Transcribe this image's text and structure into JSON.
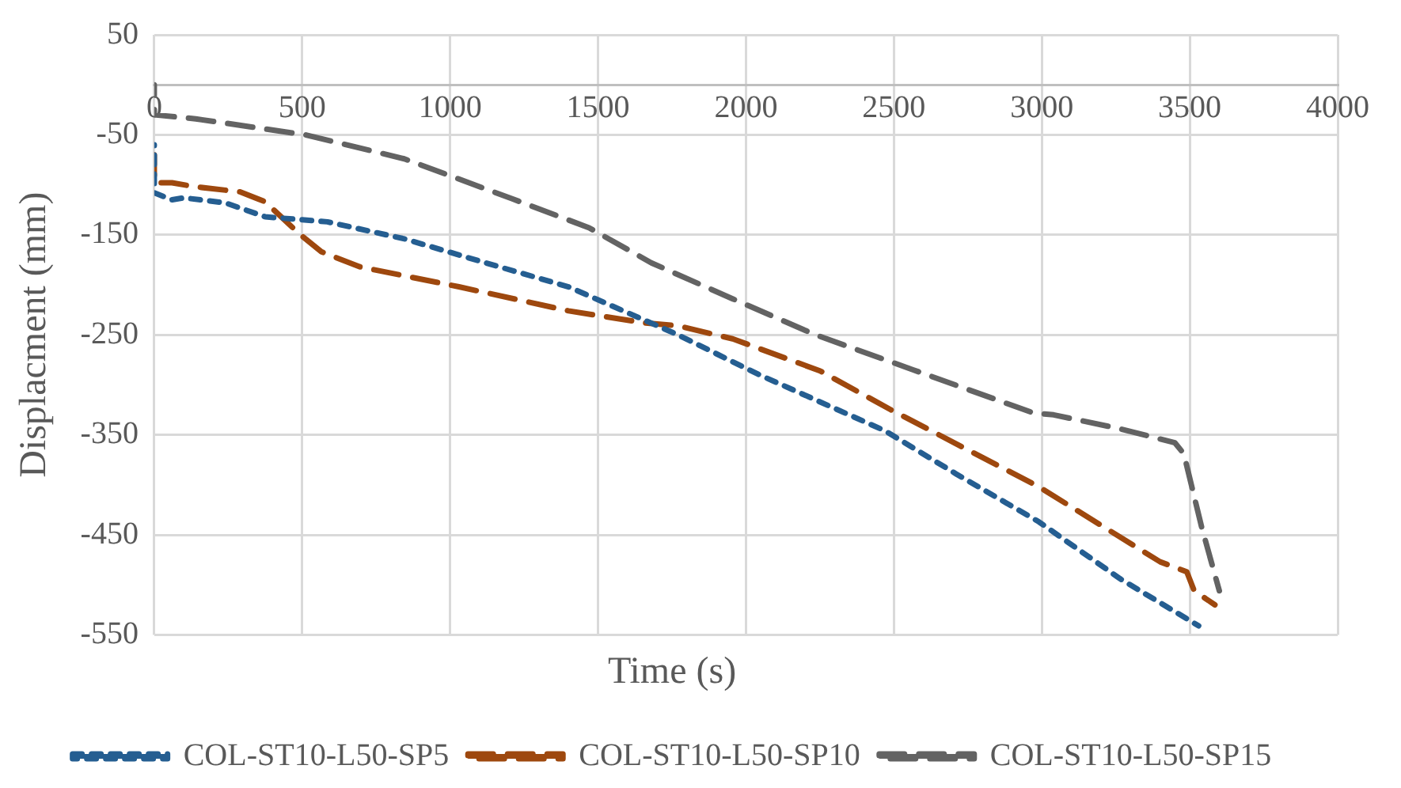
{
  "chart_data": {
    "type": "line",
    "xlabel": "Time (s)",
    "ylabel": "Displacment (mm)",
    "xlim": [
      0,
      4000
    ],
    "xticks": [
      0,
      500,
      1000,
      1500,
      2000,
      2500,
      3000,
      3500,
      4000
    ],
    "ylim": [
      -550,
      50
    ],
    "yticks": [
      -550,
      -450,
      -350,
      -250,
      -150,
      -50,
      50
    ],
    "grid": true,
    "legend": "bottom",
    "marker": "none",
    "series": [
      {
        "name": "COL-ST10-L50-SP5",
        "color": "#255e91",
        "line_style": "dotted",
        "x": [
          0,
          0,
          60,
          100,
          240,
          375,
          585,
          845,
          1120,
          1400,
          1585,
          1770,
          2045,
          2470,
          2710,
          2990,
          3265,
          3530
        ],
        "values": [
          -60,
          -108,
          -115,
          -113,
          -118,
          -132,
          -137,
          -154,
          -178,
          -202,
          -226,
          -250,
          -290,
          -346,
          -389,
          -437,
          -494,
          -541
        ]
      },
      {
        "name": "COL-ST10-L50-SP10",
        "color": "#9e480e",
        "line_style": "dashed",
        "x": [
          0,
          0,
          60,
          140,
          290,
          375,
          490,
          565,
          695,
          1030,
          1400,
          1655,
          1770,
          1955,
          2250,
          2490,
          2990,
          3400,
          3490,
          3515,
          3585
        ],
        "values": [
          -70,
          -98,
          -98,
          -102,
          -107,
          -117,
          -149,
          -167,
          -182,
          -202,
          -226,
          -238,
          -241,
          -254,
          -286,
          -325,
          -402,
          -477,
          -487,
          -506,
          -520
        ]
      },
      {
        "name": "COL-ST10-L50-SP15",
        "color": "#636363",
        "line_style": "dashed",
        "x": [
          0,
          0,
          140,
          510,
          845,
          1210,
          1470,
          1680,
          1955,
          2235,
          2565,
          2970,
          3040,
          3265,
          3450,
          3480,
          3540,
          3600
        ],
        "values": [
          0,
          -30,
          -34,
          -50,
          -74,
          -114,
          -143,
          -178,
          -214,
          -250,
          -285,
          -328,
          -330,
          -344,
          -358,
          -369,
          -442,
          -506
        ]
      }
    ]
  }
}
